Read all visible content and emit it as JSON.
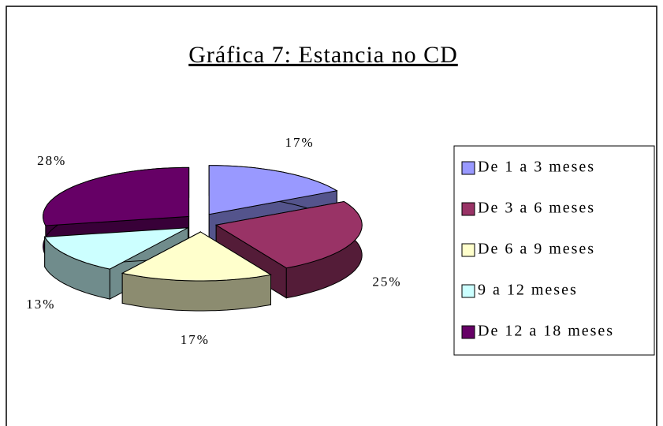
{
  "chart_data": {
    "type": "pie",
    "title": "Gráfica 7: Estancia no CD",
    "categories": [
      "De 1 a 3 meses",
      "De 3 a 6 meses",
      "De 6 a 9 meses",
      "9 a 12 meses",
      "De 12 a 18 meses"
    ],
    "values": [
      17,
      25,
      17,
      13,
      28
    ],
    "value_labels": [
      "17%",
      "25%",
      "17%",
      "13%",
      "28%"
    ],
    "colors": [
      "#9999ff",
      "#993366",
      "#ffffcc",
      "#ccffff",
      "#660066"
    ],
    "legend": "right"
  }
}
